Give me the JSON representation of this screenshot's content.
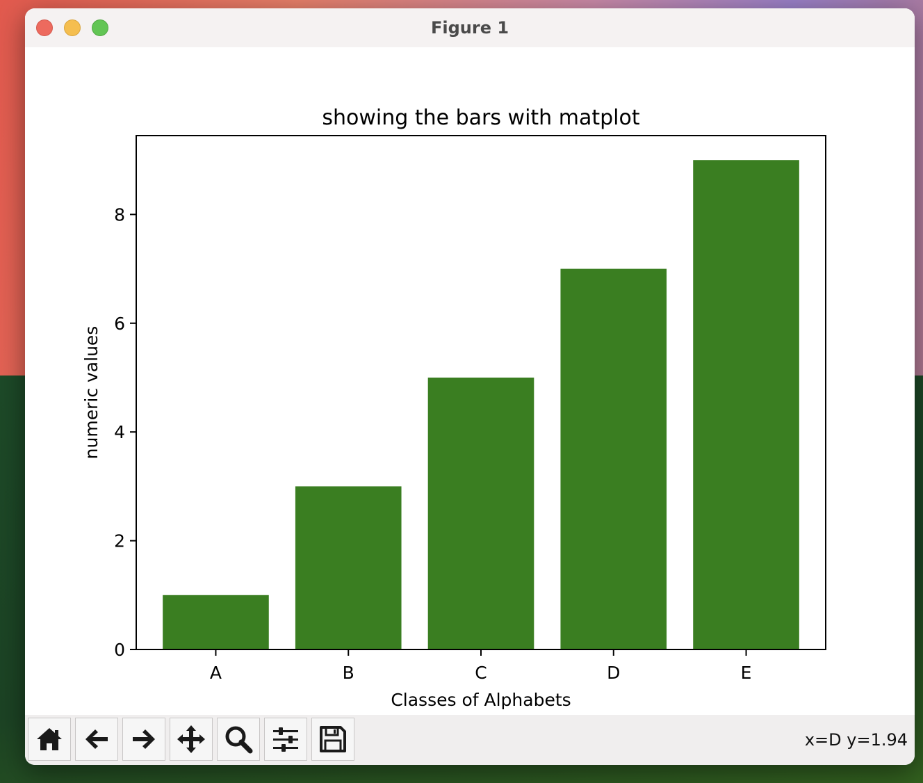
{
  "window": {
    "title": "Figure 1"
  },
  "toolbar": {
    "buttons": [
      {
        "name": "home-button",
        "icon": "home-icon"
      },
      {
        "name": "back-button",
        "icon": "arrow-left-icon"
      },
      {
        "name": "forward-button",
        "icon": "arrow-right-icon"
      },
      {
        "name": "pan-button",
        "icon": "move-icon"
      },
      {
        "name": "zoom-button",
        "icon": "magnifier-icon"
      },
      {
        "name": "configure-subplots-button",
        "icon": "sliders-icon"
      },
      {
        "name": "save-button",
        "icon": "floppy-disk-icon"
      }
    ],
    "coords": "x=D y=1.94"
  },
  "chart_data": {
    "type": "bar",
    "title": "showing the bars with matplot",
    "xlabel": "Classes of Alphabets",
    "ylabel": "numeric values",
    "categories": [
      "A",
      "B",
      "C",
      "D",
      "E"
    ],
    "values": [
      1,
      3,
      5,
      7,
      9
    ],
    "ylim": [
      0,
      9.45
    ],
    "yticks": [
      0,
      2,
      4,
      6,
      8
    ],
    "bar_color": "#3a7e21",
    "grid": false,
    "legend": false
  }
}
